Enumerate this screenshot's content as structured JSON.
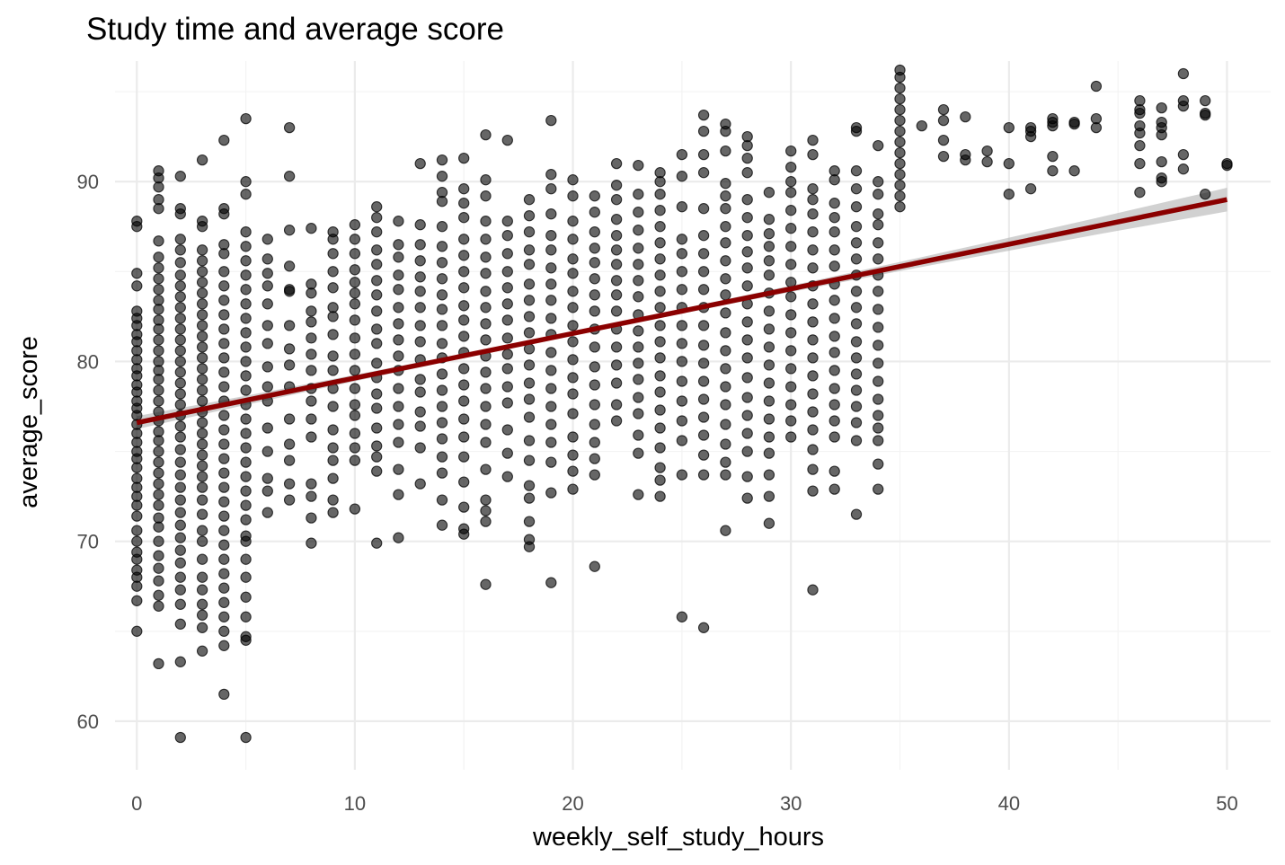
{
  "chart_data": {
    "type": "scatter",
    "title": "Study time and average score",
    "xlabel": "weekly_self_study_hours",
    "ylabel": "average_score",
    "xlim": [
      -1,
      52
    ],
    "ylim": [
      57.3,
      96.7
    ],
    "xticks": [
      "0",
      "10",
      "20",
      "30",
      "40",
      "50"
    ],
    "yticks": [
      "60",
      "70",
      "80",
      "90"
    ],
    "grid": true,
    "legend": "none",
    "point_color": "#000000",
    "point_opacity": 0.6,
    "trend_color": "#8b0000",
    "ribbon_color": "#b3b3b3",
    "trend_line": {
      "x": [
        0,
        50
      ],
      "y": [
        76.6,
        89.0
      ]
    },
    "points": [
      {
        "x": 0,
        "y": [
          65.0,
          66.7,
          67.5,
          68.0,
          68.4,
          69.0,
          69.4,
          70.0,
          70.6,
          71.4,
          72.0,
          72.5,
          73.0,
          73.5,
          74.1,
          74.6,
          75.0,
          75.5,
          76.0,
          76.5,
          77.0,
          77.4,
          77.8,
          78.3,
          78.7,
          79.2,
          79.6,
          80.1,
          80.6,
          81.1,
          81.5,
          82.0,
          82.4,
          82.8,
          84.2,
          84.9,
          87.5,
          87.8
        ]
      },
      {
        "x": 1,
        "y": [
          63.2,
          66.4,
          67.0,
          67.8,
          68.5,
          69.2,
          70.0,
          70.8,
          71.3,
          72.0,
          72.6,
          73.2,
          73.8,
          74.4,
          75.0,
          75.6,
          76.1,
          76.7,
          77.2,
          77.8,
          78.4,
          79.0,
          79.5,
          80.0,
          80.6,
          81.2,
          81.8,
          82.3,
          82.9,
          83.4,
          84.0,
          84.6,
          85.2,
          85.8,
          86.7,
          88.5,
          89.0,
          89.7,
          90.2,
          90.6
        ]
      },
      {
        "x": 2,
        "y": [
          59.1,
          63.3,
          65.4,
          66.5,
          67.3,
          68.0,
          68.8,
          69.5,
          70.2,
          70.9,
          71.6,
          72.3,
          73.0,
          73.7,
          74.4,
          75.1,
          75.8,
          76.4,
          77.0,
          77.6,
          78.2,
          78.8,
          79.4,
          80.0,
          80.6,
          81.2,
          81.8,
          82.4,
          83.0,
          83.6,
          84.2,
          84.8,
          85.5,
          86.2,
          86.8,
          88.2,
          88.5,
          90.3
        ]
      },
      {
        "x": 3,
        "y": [
          63.9,
          65.2,
          65.9,
          66.5,
          67.3,
          68.0,
          69.0,
          70.0,
          70.6,
          71.5,
          72.3,
          73.0,
          73.6,
          74.2,
          74.8,
          75.4,
          76.0,
          76.6,
          77.2,
          77.8,
          78.4,
          79.0,
          79.6,
          80.2,
          80.8,
          81.4,
          82.0,
          82.6,
          83.2,
          83.8,
          84.4,
          85.0,
          85.6,
          86.2,
          87.5,
          87.8,
          91.2
        ]
      },
      {
        "x": 4,
        "y": [
          61.5,
          64.2,
          65.0,
          65.8,
          66.6,
          67.4,
          68.2,
          69.0,
          69.8,
          70.6,
          71.4,
          72.2,
          73.0,
          73.8,
          74.6,
          75.4,
          76.2,
          77.0,
          77.8,
          78.6,
          79.4,
          80.2,
          81.0,
          81.8,
          82.6,
          83.4,
          84.2,
          85.0,
          86.0,
          86.5,
          88.2,
          88.5,
          92.3
        ]
      },
      {
        "x": 5,
        "y": [
          59.1,
          64.5,
          64.7,
          65.8,
          66.9,
          68.0,
          69.0,
          70.0,
          70.3,
          71.2,
          72.0,
          72.8,
          73.6,
          74.4,
          75.2,
          76.0,
          76.8,
          77.6,
          78.4,
          79.2,
          80.0,
          80.8,
          81.6,
          82.4,
          83.2,
          84.0,
          84.8,
          85.6,
          86.4,
          87.2,
          89.3,
          90.0,
          93.5
        ]
      },
      {
        "x": 6,
        "y": [
          71.6,
          72.8,
          73.5,
          75.0,
          76.3,
          77.8,
          78.6,
          79.7,
          81.0,
          82.0,
          83.2,
          84.2,
          84.9,
          85.7,
          86.8
        ]
      },
      {
        "x": 7,
        "y": [
          72.3,
          73.2,
          74.5,
          75.4,
          76.8,
          78.6,
          79.8,
          80.7,
          82.0,
          83.9,
          84.0,
          85.3,
          87.3,
          90.3,
          93.0
        ]
      },
      {
        "x": 8,
        "y": [
          69.9,
          71.3,
          72.5,
          73.2,
          75.8,
          76.8,
          77.8,
          78.5,
          79.5,
          80.4,
          81.3,
          82.2,
          82.8,
          83.8,
          84.3,
          87.4
        ]
      },
      {
        "x": 9,
        "y": [
          71.6,
          72.3,
          73.5,
          74.5,
          75.2,
          76.2,
          77.5,
          78.5,
          79.5,
          80.3,
          81.5,
          82.5,
          83.0,
          84.1,
          85.0,
          86.0,
          86.8,
          87.2
        ]
      },
      {
        "x": 10,
        "y": [
          71.8,
          74.5,
          75.2,
          76.0,
          77.0,
          77.6,
          78.5,
          79.5,
          80.4,
          81.3,
          82.3,
          83.2,
          83.8,
          84.4,
          85.1,
          86.0,
          86.8,
          87.6
        ]
      },
      {
        "x": 11,
        "y": [
          69.9,
          73.9,
          74.7,
          75.3,
          76.3,
          77.4,
          78.2,
          79.1,
          79.9,
          81.0,
          81.8,
          82.8,
          83.7,
          84.5,
          85.4,
          86.2,
          87.2,
          88.0,
          88.6
        ]
      },
      {
        "x": 12,
        "y": [
          70.2,
          72.6,
          74.0,
          75.5,
          76.5,
          77.5,
          78.5,
          79.5,
          80.3,
          81.2,
          82.1,
          83.0,
          84.0,
          84.8,
          85.8,
          86.5,
          87.8
        ]
      },
      {
        "x": 13,
        "y": [
          73.2,
          75.2,
          76.4,
          77.2,
          78.3,
          79.0,
          80.1,
          81.1,
          82.0,
          83.0,
          83.9,
          84.7,
          85.6,
          86.5,
          87.6,
          91.0
        ]
      },
      {
        "x": 14,
        "y": [
          70.9,
          72.3,
          73.8,
          74.7,
          75.7,
          76.6,
          77.5,
          78.4,
          79.3,
          80.2,
          81.0,
          82.0,
          82.9,
          83.7,
          84.6,
          85.5,
          86.4,
          87.5,
          88.9,
          89.4,
          90.3,
          91.2
        ]
      },
      {
        "x": 15,
        "y": [
          70.4,
          70.7,
          71.9,
          73.3,
          74.7,
          75.8,
          76.8,
          77.8,
          78.7,
          79.6,
          80.5,
          81.4,
          82.3,
          83.1,
          84.1,
          85.0,
          85.9,
          86.8,
          88.0,
          88.8,
          89.6,
          91.3
        ]
      },
      {
        "x": 16,
        "y": [
          67.6,
          71.1,
          71.7,
          72.3,
          74.0,
          75.5,
          76.5,
          77.5,
          78.5,
          79.4,
          80.3,
          81.2,
          82.1,
          83.0,
          83.9,
          84.9,
          85.8,
          86.8,
          87.8,
          89.2,
          90.1,
          92.6
        ]
      },
      {
        "x": 17,
        "y": [
          73.6,
          74.9,
          76.2,
          77.7,
          78.6,
          79.6,
          80.4,
          81.3,
          82.3,
          83.2,
          84.1,
          85.0,
          86.0,
          87.0,
          87.8,
          92.3
        ]
      },
      {
        "x": 18,
        "y": [
          69.7,
          70.1,
          71.1,
          72.4,
          73.1,
          74.5,
          75.6,
          76.9,
          77.9,
          78.8,
          79.8,
          80.7,
          81.6,
          82.5,
          83.4,
          84.3,
          85.4,
          86.2,
          87.2,
          88.1,
          89.0
        ]
      },
      {
        "x": 19,
        "y": [
          67.7,
          72.7,
          74.4,
          75.5,
          76.5,
          77.5,
          78.5,
          79.5,
          80.5,
          81.5,
          82.4,
          83.4,
          84.3,
          85.2,
          86.2,
          87.0,
          88.2,
          89.6,
          90.4,
          93.4
        ]
      },
      {
        "x": 20,
        "y": [
          72.9,
          73.9,
          74.8,
          75.8,
          77.1,
          78.2,
          79.1,
          80.1,
          81.1,
          82.0,
          83.0,
          83.9,
          84.9,
          85.7,
          86.8,
          87.8,
          89.2,
          90.1
        ]
      },
      {
        "x": 21,
        "y": [
          68.6,
          73.7,
          74.6,
          75.5,
          76.5,
          77.6,
          78.7,
          79.7,
          80.8,
          81.8,
          82.8,
          83.7,
          84.6,
          85.5,
          86.3,
          87.2,
          88.3,
          89.2
        ]
      },
      {
        "x": 22,
        "y": [
          76.7,
          77.6,
          78.8,
          79.8,
          80.8,
          81.8,
          82.8,
          83.7,
          84.5,
          85.4,
          86.2,
          87.0,
          87.9,
          89.0,
          89.8,
          91.0
        ]
      },
      {
        "x": 23,
        "y": [
          72.6,
          74.9,
          75.9,
          77.1,
          78.0,
          79.0,
          79.9,
          80.8,
          81.7,
          82.6,
          83.6,
          84.5,
          85.4,
          86.3,
          87.3,
          88.3,
          89.3,
          90.9
        ]
      },
      {
        "x": 24,
        "y": [
          72.5,
          73.4,
          74.1,
          75.2,
          76.3,
          77.3,
          78.3,
          79.2,
          80.2,
          81.1,
          82.0,
          83.0,
          83.9,
          84.8,
          85.7,
          86.6,
          87.5,
          88.4,
          89.3,
          90.0,
          90.5
        ]
      },
      {
        "x": 25,
        "y": [
          65.8,
          73.7,
          75.6,
          76.7,
          77.8,
          78.9,
          80.0,
          81.0,
          82.0,
          83.0,
          84.0,
          85.0,
          86.0,
          86.8,
          88.6,
          90.3,
          91.5
        ]
      },
      {
        "x": 26,
        "y": [
          65.2,
          73.7,
          74.8,
          75.9,
          76.9,
          77.9,
          78.9,
          79.9,
          80.9,
          82.0,
          83.0,
          84.0,
          85.0,
          86.0,
          87.0,
          88.5,
          90.5,
          91.5,
          92.8,
          93.7
        ]
      },
      {
        "x": 27,
        "y": [
          70.6,
          73.7,
          74.4,
          75.4,
          76.5,
          77.6,
          78.6,
          79.6,
          80.6,
          81.6,
          82.7,
          83.7,
          84.6,
          85.6,
          86.6,
          87.5,
          88.5,
          89.2,
          89.9,
          91.7,
          92.8,
          93.2
        ]
      },
      {
        "x": 28,
        "y": [
          72.4,
          73.6,
          75.0,
          76.0,
          77.0,
          78.0,
          79.1,
          80.2,
          81.2,
          82.2,
          83.2,
          84.2,
          85.2,
          86.1,
          87.0,
          88.0,
          89.0,
          90.5,
          91.3,
          92.0,
          92.5
        ]
      },
      {
        "x": 29,
        "y": [
          71.0,
          72.5,
          73.7,
          74.9,
          75.8,
          76.8,
          77.8,
          78.8,
          79.8,
          80.8,
          81.8,
          82.8,
          83.8,
          84.8,
          85.6,
          86.4,
          87.1,
          87.9,
          89.4
        ]
      },
      {
        "x": 30,
        "y": [
          75.8,
          76.7,
          77.6,
          78.6,
          79.6,
          80.6,
          81.6,
          82.6,
          83.6,
          84.4,
          85.4,
          86.4,
          87.4,
          88.4,
          89.4,
          90.0,
          90.8,
          91.7
        ]
      },
      {
        "x": 31,
        "y": [
          67.3,
          72.8,
          74.0,
          75.1,
          76.2,
          77.2,
          78.2,
          79.2,
          80.2,
          81.2,
          82.2,
          83.2,
          84.2,
          85.2,
          86.2,
          87.2,
          88.2,
          89.0,
          89.6,
          91.5,
          92.3
        ]
      },
      {
        "x": 32,
        "y": [
          72.9,
          73.9,
          75.8,
          76.7,
          77.6,
          78.5,
          79.5,
          80.5,
          81.4,
          82.4,
          83.4,
          84.3,
          85.3,
          86.2,
          87.2,
          88.0,
          88.8,
          90.1,
          90.6
        ]
      },
      {
        "x": 33,
        "y": [
          71.5,
          75.6,
          76.6,
          77.5,
          78.4,
          79.3,
          80.2,
          81.1,
          82.1,
          83.0,
          83.9,
          84.8,
          85.7,
          86.6,
          87.5,
          88.6,
          89.6,
          90.6,
          92.8,
          93.0
        ]
      },
      {
        "x": 34,
        "y": [
          72.9,
          74.3,
          75.6,
          76.3,
          77.0,
          77.9,
          78.9,
          79.9,
          80.9,
          81.9,
          82.9,
          83.9,
          84.8,
          85.7,
          86.6,
          87.6,
          88.2,
          89.3,
          90.0,
          92.0
        ]
      },
      {
        "x": 35,
        "y": [
          88.6,
          89.2,
          89.8,
          90.4,
          91.0,
          91.6,
          92.2,
          92.8,
          93.4,
          94.0,
          94.6,
          95.2,
          95.8,
          96.2
        ]
      },
      {
        "x": 36,
        "y": [
          93.1
        ]
      },
      {
        "x": 37,
        "y": [
          91.4,
          92.3,
          93.4,
          94.0
        ]
      },
      {
        "x": 38,
        "y": [
          91.2,
          91.5,
          93.6
        ]
      },
      {
        "x": 39,
        "y": [
          91.1,
          91.7
        ]
      },
      {
        "x": 40,
        "y": [
          89.3,
          91.0,
          93.0
        ]
      },
      {
        "x": 41,
        "y": [
          89.6,
          92.5,
          92.8,
          93.0
        ]
      },
      {
        "x": 42,
        "y": [
          90.6,
          91.4,
          93.1,
          93.3,
          93.5
        ]
      },
      {
        "x": 43,
        "y": [
          90.6,
          93.2,
          93.3
        ]
      },
      {
        "x": 44,
        "y": [
          93.0,
          93.5,
          95.3
        ]
      },
      {
        "x": 46,
        "y": [
          89.4,
          91.0,
          92.0,
          92.7,
          93.1,
          93.8,
          94.0,
          94.5
        ]
      },
      {
        "x": 47,
        "y": [
          90.0,
          90.2,
          91.1,
          92.6,
          93.0,
          93.3,
          94.1
        ]
      },
      {
        "x": 48,
        "y": [
          90.7,
          91.5,
          94.2,
          94.5,
          96.0
        ]
      },
      {
        "x": 49,
        "y": [
          89.3,
          93.7,
          93.8,
          94.5
        ]
      },
      {
        "x": 50,
        "y": [
          90.9,
          91.0
        ]
      }
    ]
  }
}
